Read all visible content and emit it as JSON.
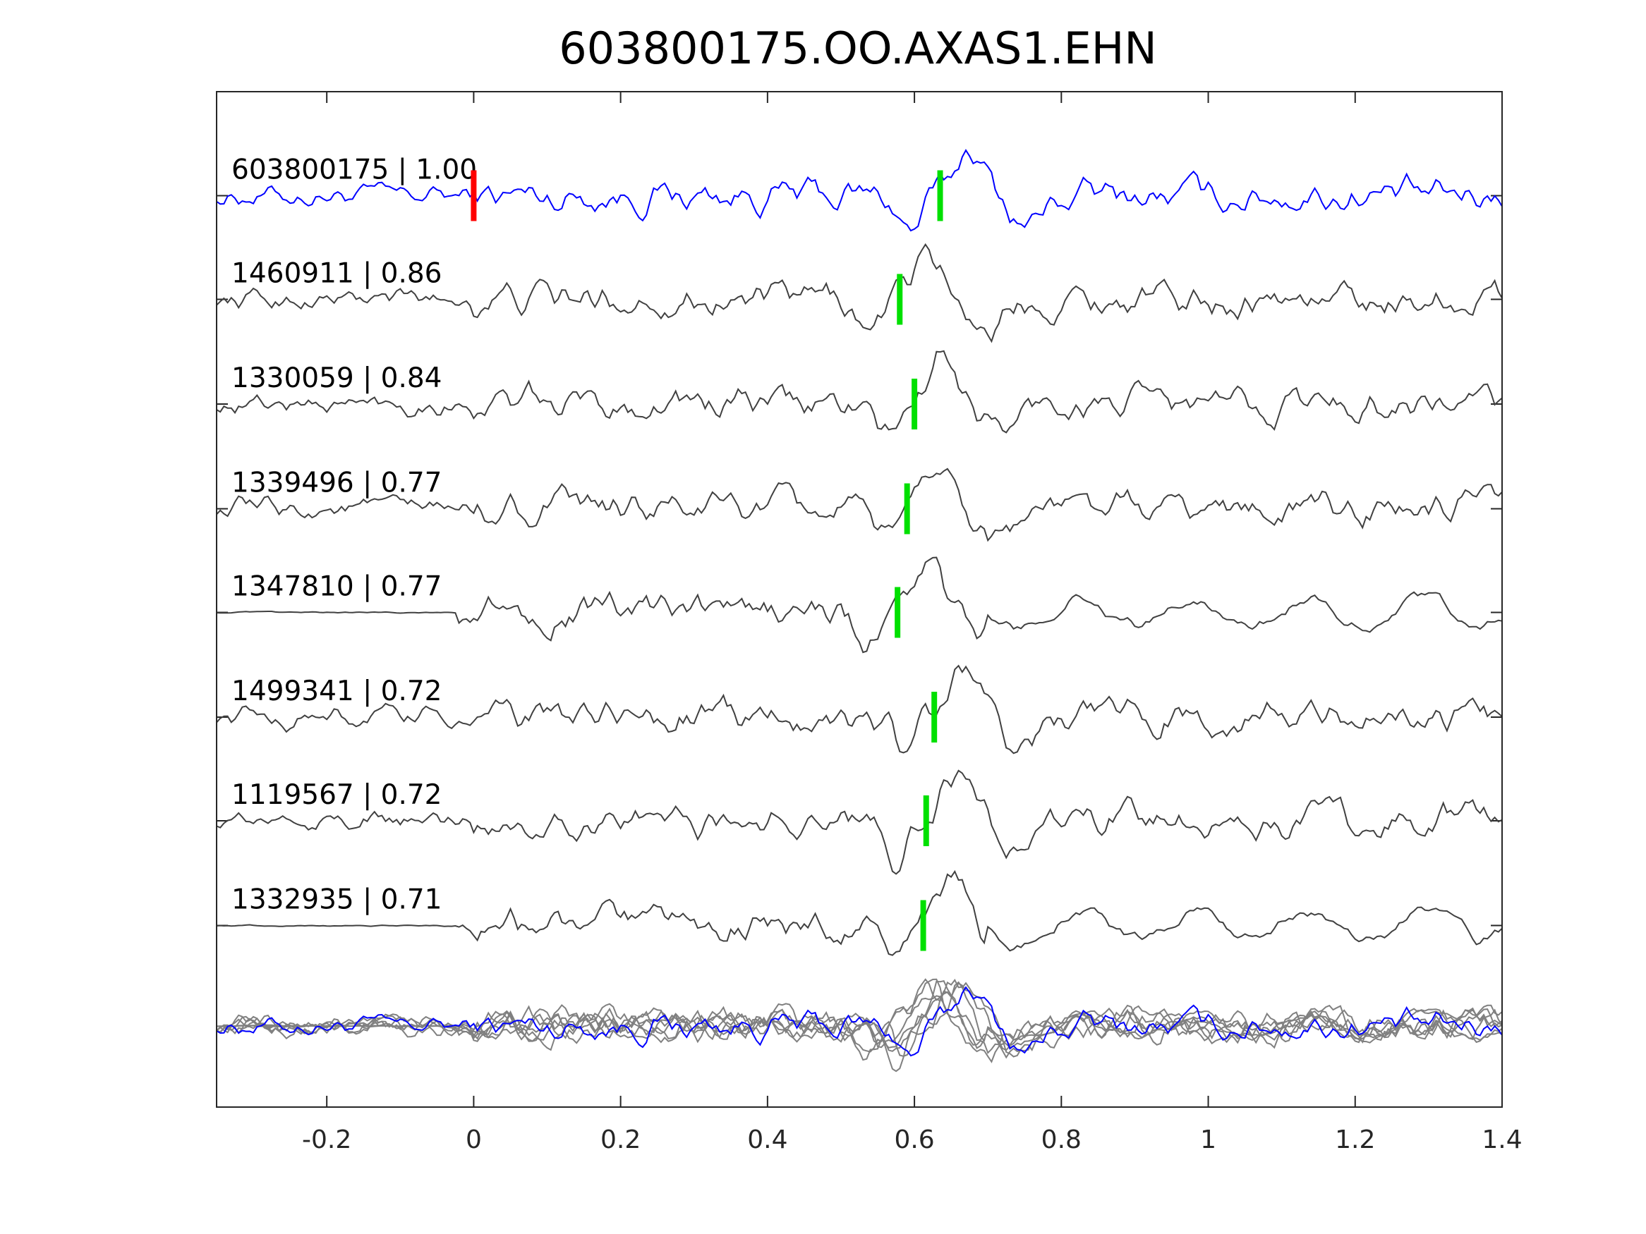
{
  "chart_data": {
    "type": "line",
    "title": "603800175.OO.AXAS1.EHN",
    "xlabel": "",
    "ylabel": "",
    "xlim": [
      -0.35,
      1.4
    ],
    "xticks": [
      -0.2,
      0,
      0.2,
      0.4,
      0.6,
      0.8,
      1,
      1.2,
      1.4
    ],
    "xtick_labels": [
      "-0.2",
      "0",
      "0.2",
      "0.4",
      "0.6",
      "0.8",
      "1",
      "1.2",
      "1.4"
    ],
    "grid": false,
    "colors": {
      "template": "#0000ff",
      "trace": "#404040",
      "stack": "#808080",
      "template_pick": "#ff0000",
      "pick": "#00e000"
    },
    "traces": [
      {
        "id": "603800175",
        "cc": "1.00",
        "label": "603800175 | 1.00",
        "pick": 0.635,
        "ref_pick": 0.0,
        "template": true,
        "quiet_pre": false
      },
      {
        "id": "1460911",
        "cc": "0.86",
        "label": "1460911 | 0.86",
        "pick": 0.58,
        "quiet_pre": false
      },
      {
        "id": "1330059",
        "cc": "0.84",
        "label": "1330059 | 0.84",
        "pick": 0.6,
        "quiet_pre": false
      },
      {
        "id": "1339496",
        "cc": "0.77",
        "label": "1339496 | 0.77",
        "pick": 0.59,
        "quiet_pre": false
      },
      {
        "id": "1347810",
        "cc": "0.77",
        "label": "1347810 | 0.77",
        "pick": 0.577,
        "quiet_pre": true
      },
      {
        "id": "1499341",
        "cc": "0.72",
        "label": "1499341 | 0.72",
        "pick": 0.627,
        "quiet_pre": false
      },
      {
        "id": "1119567",
        "cc": "0.72",
        "label": "1119567 | 0.72",
        "pick": 0.616,
        "quiet_pre": false
      },
      {
        "id": "1332935",
        "cc": "0.71",
        "label": "1332935 | 0.71",
        "pick": 0.612,
        "quiet_pre": true
      }
    ]
  }
}
